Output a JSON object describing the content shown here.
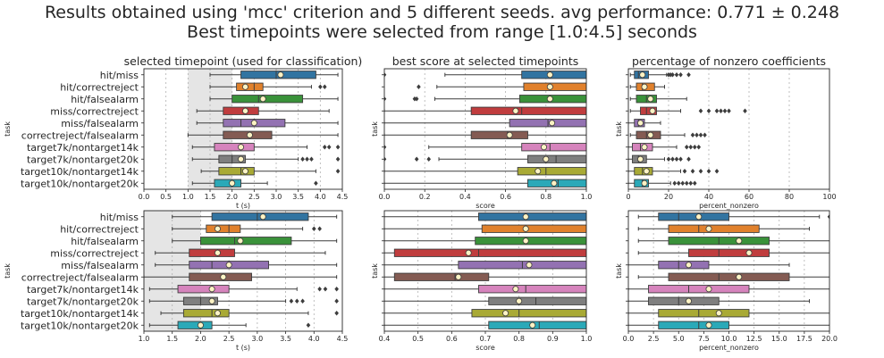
{
  "figure": {
    "title_line1": "Results obtained using 'mcc' criterion and 5 different seeds.  avg performance: 0.771 ± 0.248",
    "title_line2": "Best timepoints were selected from range [1.0:4.5] seconds"
  },
  "colors": [
    "#3274a1",
    "#e1812c",
    "#3a923a",
    "#c03d3e",
    "#9372b2",
    "#845b53",
    "#d684bd",
    "#7f7f7f",
    "#a9aa35",
    "#2ba9b8"
  ],
  "chart_data": [
    {
      "type": "box",
      "title": "selected timepoint (used for classification)",
      "xlabel": "t (s)",
      "ylabel": "task",
      "xlim": [
        0,
        4.5
      ],
      "xticks": [
        "0.0",
        "0.5",
        "1.0",
        "1.5",
        "2.0",
        "2.5",
        "3.0",
        "3.5",
        "4.0",
        "4.5"
      ],
      "shaded_range": [
        1.0,
        2.0
      ],
      "categories": [
        "hit/miss",
        "hit/correctreject",
        "hit/falsealarm",
        "miss/correctreject",
        "miss/falsealarm",
        "correctreject/falsealarm",
        "target7k/nontarget14k",
        "target7k/nontarget20k",
        "target10k/nontarget14k",
        "target10k/nontarget20k"
      ],
      "boxes": [
        {
          "min": 1.5,
          "q1": 2.2,
          "median": 3.0,
          "q3": 3.9,
          "max": 4.4,
          "mean": 3.1,
          "outliers": []
        },
        {
          "min": 1.5,
          "q1": 2.1,
          "median": 2.5,
          "q3": 2.7,
          "max": 3.8,
          "mean": 2.3,
          "outliers": [
            4.0,
            4.1
          ]
        },
        {
          "min": 1.5,
          "q1": 2.0,
          "median": 2.6,
          "q3": 3.6,
          "max": 4.4,
          "mean": 2.7,
          "outliers": []
        },
        {
          "min": 1.2,
          "q1": 1.8,
          "median": 2.3,
          "q3": 2.6,
          "max": 4.2,
          "mean": 2.3,
          "outliers": []
        },
        {
          "min": 1.2,
          "q1": 1.8,
          "median": 2.2,
          "q3": 3.2,
          "max": 4.4,
          "mean": 2.5,
          "outliers": []
        },
        {
          "min": 1.0,
          "q1": 1.8,
          "median": 2.4,
          "q3": 2.9,
          "max": 4.4,
          "mean": 2.4,
          "outliers": []
        },
        {
          "min": 1.1,
          "q1": 1.6,
          "median": 2.2,
          "q3": 2.5,
          "max": 3.7,
          "mean": 2.2,
          "outliers": [
            4.1,
            4.2,
            4.4
          ]
        },
        {
          "min": 1.1,
          "q1": 1.7,
          "median": 2.0,
          "q3": 2.3,
          "max": 3.5,
          "mean": 2.2,
          "outliers": [
            3.6,
            3.7,
            3.8,
            4.4
          ]
        },
        {
          "min": 1.3,
          "q1": 1.7,
          "median": 2.2,
          "q3": 2.5,
          "max": 3.9,
          "mean": 2.3,
          "outliers": [
            4.4
          ]
        },
        {
          "min": 1.1,
          "q1": 1.6,
          "median": 2.0,
          "q3": 2.2,
          "max": 2.8,
          "mean": 2.0,
          "outliers": [
            3.9
          ]
        }
      ]
    },
    {
      "type": "box",
      "title": "best score at selected timepoints",
      "xlabel": "score",
      "ylabel": "task",
      "xlim": [
        0,
        1.0
      ],
      "xticks": [
        "0.0",
        "0.2",
        "0.4",
        "0.6",
        "0.8",
        "1.0"
      ],
      "categories": [
        "hit/miss",
        "hit/correctreject",
        "hit/falsealarm",
        "miss/correctreject",
        "miss/falsealarm",
        "correctreject/falsealarm",
        "target7k/nontarget14k",
        "target7k/nontarget20k",
        "target10k/nontarget14k",
        "target10k/nontarget20k"
      ],
      "boxes": [
        {
          "min": 0.3,
          "q1": 0.68,
          "median": 0.82,
          "q3": 1.0,
          "max": 1.0,
          "mean": 0.82,
          "outliers": [
            0.0
          ]
        },
        {
          "min": 0.26,
          "q1": 0.69,
          "median": 0.82,
          "q3": 1.0,
          "max": 1.0,
          "mean": 0.82,
          "outliers": [
            0.17
          ]
        },
        {
          "min": 0.25,
          "q1": 0.67,
          "median": 0.82,
          "q3": 1.0,
          "max": 1.0,
          "mean": 0.82,
          "outliers": [
            0.0,
            0.15,
            0.16
          ]
        },
        {
          "min": 0.0,
          "q1": 0.43,
          "median": 0.68,
          "q3": 1.0,
          "max": 1.0,
          "mean": 0.65,
          "outliers": []
        },
        {
          "min": 0.0,
          "q1": 0.62,
          "median": 0.81,
          "q3": 1.0,
          "max": 1.0,
          "mean": 0.83,
          "outliers": []
        },
        {
          "min": 0.0,
          "q1": 0.43,
          "median": 0.61,
          "q3": 0.71,
          "max": 1.0,
          "mean": 0.62,
          "outliers": []
        },
        {
          "min": 0.22,
          "q1": 0.68,
          "median": 0.82,
          "q3": 1.0,
          "max": 1.0,
          "mean": 0.79,
          "outliers": [
            0.0
          ]
        },
        {
          "min": 0.27,
          "q1": 0.71,
          "median": 0.85,
          "q3": 1.0,
          "max": 1.0,
          "mean": 0.8,
          "outliers": [
            0.0,
            0.16,
            0.22
          ]
        },
        {
          "min": 0.0,
          "q1": 0.66,
          "median": 0.8,
          "q3": 1.0,
          "max": 1.0,
          "mean": 0.76,
          "outliers": []
        },
        {
          "min": 0.0,
          "q1": 0.71,
          "median": 0.86,
          "q3": 1.0,
          "max": 1.0,
          "mean": 0.84,
          "outliers": []
        }
      ]
    },
    {
      "type": "box",
      "title": "percentage of nonzero coefficients",
      "xlabel": "percent_nonzero",
      "ylabel": "task",
      "xlim": [
        0,
        100
      ],
      "xticks": [
        "0",
        "20",
        "40",
        "60",
        "80",
        "100"
      ],
      "categories": [
        "hit/miss",
        "hit/correctreject",
        "hit/falsealarm",
        "miss/correctreject",
        "miss/falsealarm",
        "correctreject/falsealarm",
        "target7k/nontarget14k",
        "target7k/nontarget20k",
        "target10k/nontarget14k",
        "target10k/nontarget20k"
      ],
      "boxes": [
        {
          "min": 1,
          "q1": 3,
          "median": 5,
          "q3": 10,
          "max": 19,
          "mean": 7,
          "outliers": [
            20,
            21,
            22,
            24,
            26,
            30
          ]
        },
        {
          "min": 1,
          "q1": 4,
          "median": 7,
          "q3": 13,
          "max": 18,
          "mean": 8,
          "outliers": []
        },
        {
          "min": 1,
          "q1": 4,
          "median": 9,
          "q3": 14,
          "max": 29,
          "mean": 11,
          "outliers": []
        },
        {
          "min": 1,
          "q1": 6,
          "median": 9,
          "q3": 14,
          "max": 26,
          "mean": 12,
          "outliers": [
            36,
            40,
            44,
            46,
            48,
            50,
            58
          ]
        },
        {
          "min": 0,
          "q1": 3,
          "median": 5,
          "q3": 8,
          "max": 16,
          "mean": 6,
          "outliers": []
        },
        {
          "min": 1,
          "q1": 4,
          "median": 9,
          "q3": 16,
          "max": 28,
          "mean": 11,
          "outliers": [
            32,
            34,
            36,
            38
          ]
        },
        {
          "min": 0,
          "q1": 2,
          "median": 6,
          "q3": 12,
          "max": 24,
          "mean": 8,
          "outliers": [
            29,
            31,
            33,
            35
          ]
        },
        {
          "min": 0,
          "q1": 2,
          "median": 5,
          "q3": 9,
          "max": 18,
          "mean": 6,
          "outliers": [
            20,
            22,
            24,
            26,
            30
          ]
        },
        {
          "min": 0,
          "q1": 3,
          "median": 7,
          "q3": 12,
          "max": 26,
          "mean": 9,
          "outliers": [
            28,
            32,
            36,
            40,
            44
          ]
        },
        {
          "min": 0,
          "q1": 3,
          "median": 7,
          "q3": 10,
          "max": 21,
          "mean": 8,
          "outliers": [
            23,
            25,
            27,
            29,
            31,
            33
          ]
        }
      ]
    },
    {
      "type": "box",
      "title": "",
      "xlabel": "t (s)",
      "ylabel": "task",
      "xlim": [
        1.0,
        4.5
      ],
      "xticks": [
        "1.0",
        "1.5",
        "2.0",
        "2.5",
        "3.0",
        "3.5",
        "4.0",
        "4.5"
      ],
      "shaded_range": [
        1.0,
        2.0
      ],
      "categories": [
        "hit/miss",
        "hit/correctreject",
        "hit/falsealarm",
        "miss/correctreject",
        "miss/falsealarm",
        "correctreject/falsealarm",
        "target7k/nontarget14k",
        "target7k/nontarget20k",
        "target10k/nontarget14k",
        "target10k/nontarget20k"
      ],
      "boxes": [
        {
          "min": 1.5,
          "q1": 2.2,
          "median": 3.0,
          "q3": 3.9,
          "max": 4.4,
          "mean": 3.1,
          "outliers": []
        },
        {
          "min": 1.5,
          "q1": 2.1,
          "median": 2.5,
          "q3": 2.7,
          "max": 3.8,
          "mean": 2.3,
          "outliers": [
            4.0,
            4.1
          ]
        },
        {
          "min": 1.5,
          "q1": 2.0,
          "median": 2.6,
          "q3": 3.6,
          "max": 4.4,
          "mean": 2.7,
          "outliers": []
        },
        {
          "min": 1.2,
          "q1": 1.8,
          "median": 2.3,
          "q3": 2.6,
          "max": 4.2,
          "mean": 2.3,
          "outliers": []
        },
        {
          "min": 1.2,
          "q1": 1.8,
          "median": 2.2,
          "q3": 3.2,
          "max": 4.4,
          "mean": 2.5,
          "outliers": []
        },
        {
          "min": 1.0,
          "q1": 1.8,
          "median": 2.4,
          "q3": 2.9,
          "max": 4.4,
          "mean": 2.4,
          "outliers": []
        },
        {
          "min": 1.1,
          "q1": 1.6,
          "median": 2.2,
          "q3": 2.5,
          "max": 3.7,
          "mean": 2.2,
          "outliers": [
            4.1,
            4.2,
            4.4
          ]
        },
        {
          "min": 1.1,
          "q1": 1.7,
          "median": 2.0,
          "q3": 2.3,
          "max": 3.5,
          "mean": 2.2,
          "outliers": [
            3.6,
            3.7,
            3.8,
            4.4
          ]
        },
        {
          "min": 1.3,
          "q1": 1.7,
          "median": 2.2,
          "q3": 2.5,
          "max": 3.9,
          "mean": 2.3,
          "outliers": [
            4.4
          ]
        },
        {
          "min": 1.1,
          "q1": 1.6,
          "median": 2.0,
          "q3": 2.2,
          "max": 2.8,
          "mean": 2.0,
          "outliers": [
            3.9
          ]
        }
      ]
    },
    {
      "type": "box",
      "title": "",
      "xlabel": "score",
      "ylabel": "task",
      "xlim": [
        0.4,
        1.0
      ],
      "xticks": [
        "0.4",
        "0.5",
        "0.6",
        "0.7",
        "0.8",
        "0.9",
        "1.0"
      ],
      "categories": [
        "hit/miss",
        "hit/correctreject",
        "hit/falsealarm",
        "miss/correctreject",
        "miss/falsealarm",
        "correctreject/falsealarm",
        "target7k/nontarget14k",
        "target7k/nontarget20k",
        "target10k/nontarget14k",
        "target10k/nontarget20k"
      ],
      "boxes": [
        {
          "min": 0.3,
          "q1": 0.68,
          "median": 0.82,
          "q3": 1.0,
          "max": 1.0,
          "mean": 0.82,
          "outliers": []
        },
        {
          "min": 0.26,
          "q1": 0.69,
          "median": 0.82,
          "q3": 1.0,
          "max": 1.0,
          "mean": 0.82,
          "outliers": []
        },
        {
          "min": 0.25,
          "q1": 0.67,
          "median": 0.82,
          "q3": 1.0,
          "max": 1.0,
          "mean": 0.82,
          "outliers": []
        },
        {
          "min": 0.0,
          "q1": 0.43,
          "median": 0.68,
          "q3": 1.0,
          "max": 1.0,
          "mean": 0.65,
          "outliers": []
        },
        {
          "min": 0.0,
          "q1": 0.62,
          "median": 0.81,
          "q3": 1.0,
          "max": 1.0,
          "mean": 0.83,
          "outliers": []
        },
        {
          "min": 0.0,
          "q1": 0.43,
          "median": 0.61,
          "q3": 0.71,
          "max": 1.0,
          "mean": 0.62,
          "outliers": []
        },
        {
          "min": 0.22,
          "q1": 0.68,
          "median": 0.82,
          "q3": 1.0,
          "max": 1.0,
          "mean": 0.79,
          "outliers": []
        },
        {
          "min": 0.27,
          "q1": 0.71,
          "median": 0.85,
          "q3": 1.0,
          "max": 1.0,
          "mean": 0.8,
          "outliers": []
        },
        {
          "min": 0.0,
          "q1": 0.66,
          "median": 0.8,
          "q3": 1.0,
          "max": 1.0,
          "mean": 0.76,
          "outliers": []
        },
        {
          "min": 0.0,
          "q1": 0.71,
          "median": 0.86,
          "q3": 1.0,
          "max": 1.0,
          "mean": 0.84,
          "outliers": []
        }
      ]
    },
    {
      "type": "box",
      "title": "",
      "xlabel": "percent_nonzero",
      "ylabel": "task",
      "xlim": [
        0,
        20
      ],
      "xticks": [
        "0.0",
        "2.5",
        "5.0",
        "7.5",
        "10.0",
        "12.5",
        "15.0",
        "17.5",
        "20.0"
      ],
      "categories": [
        "hit/miss",
        "hit/correctreject",
        "hit/falsealarm",
        "miss/correctreject",
        "miss/falsealarm",
        "correctreject/falsealarm",
        "target7k/nontarget14k",
        "target7k/nontarget20k",
        "target10k/nontarget14k",
        "target10k/nontarget20k"
      ],
      "boxes": [
        {
          "min": 1,
          "q1": 3,
          "median": 5,
          "q3": 10,
          "max": 19,
          "mean": 7,
          "outliers": [
            20
          ]
        },
        {
          "min": 1,
          "q1": 4,
          "median": 7,
          "q3": 13,
          "max": 18,
          "mean": 8,
          "outliers": []
        },
        {
          "min": 1,
          "q1": 4,
          "median": 9,
          "q3": 14,
          "max": 29,
          "mean": 11,
          "outliers": []
        },
        {
          "min": 1,
          "q1": 6,
          "median": 9,
          "q3": 14,
          "max": 26,
          "mean": 12,
          "outliers": []
        },
        {
          "min": 0,
          "q1": 3,
          "median": 5,
          "q3": 8,
          "max": 16,
          "mean": 6,
          "outliers": []
        },
        {
          "min": 1,
          "q1": 4,
          "median": 9,
          "q3": 16,
          "max": 28,
          "mean": 11,
          "outliers": []
        },
        {
          "min": 0,
          "q1": 2,
          "median": 6,
          "q3": 12,
          "max": 24,
          "mean": 8,
          "outliers": []
        },
        {
          "min": 0,
          "q1": 2,
          "median": 5,
          "q3": 9,
          "max": 18,
          "mean": 6,
          "outliers": []
        },
        {
          "min": 0,
          "q1": 3,
          "median": 7,
          "q3": 12,
          "max": 26,
          "mean": 9,
          "outliers": []
        },
        {
          "min": 0,
          "q1": 3,
          "median": 7,
          "q3": 10,
          "max": 21,
          "mean": 8,
          "outliers": []
        }
      ]
    }
  ]
}
